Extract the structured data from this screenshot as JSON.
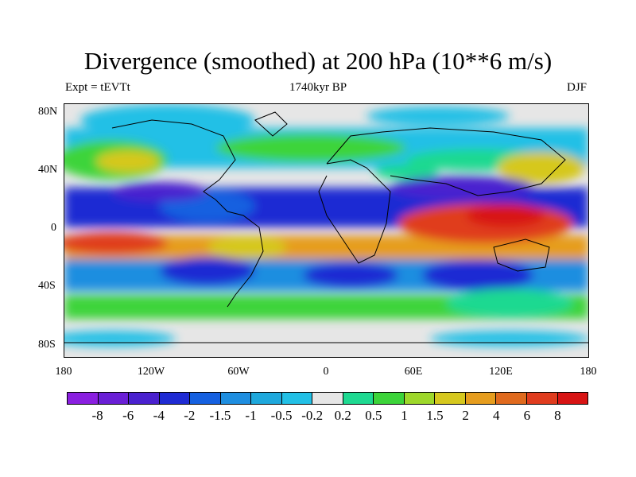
{
  "title": "Divergence (smoothed) at 200 hPa (10**6 m/s)",
  "subtitle_left": "Expt = tEVTt",
  "subtitle_center": "1740kyr BP",
  "subtitle_right": "DJF",
  "lat_labels": [
    "80N",
    "40N",
    "0",
    "40S",
    "80S"
  ],
  "lon_labels": [
    "180",
    "120W",
    "60W",
    "0",
    "60E",
    "120E",
    "180"
  ],
  "colorbar": {
    "labels": [
      "-8",
      "-6",
      "-4",
      "-2",
      "-1.5",
      "-1",
      "-0.5",
      "-0.2",
      "0.2",
      "0.5",
      "1",
      "1.5",
      "2",
      "4",
      "6",
      "8"
    ],
    "colors": [
      "#8a1fe0",
      "#6a1fd6",
      "#4a21cf",
      "#1f2bd3",
      "#1560e0",
      "#1e8ee0",
      "#1ea8dc",
      "#22c0e6",
      "#e6e6e6",
      "#1ed991",
      "#3cd43a",
      "#9ed82b",
      "#d6c81e",
      "#e69d1e",
      "#e06a1e",
      "#e03c1e",
      "#d81414"
    ]
  },
  "legend_colors": {
    "ocean_neutral": "#e6e6e6",
    "strong_convergence": "#1f2bd3",
    "moderate_convergence": "#1e8ee0",
    "weak_convergence": "#22c0e6",
    "weak_divergence": "#1ed991",
    "moderate_divergence": "#3cd43a",
    "strong_divergence": "#e69d1e",
    "very_strong_divergence": "#e03c1e",
    "very_strong_convergence": "#6a1fd6"
  }
}
